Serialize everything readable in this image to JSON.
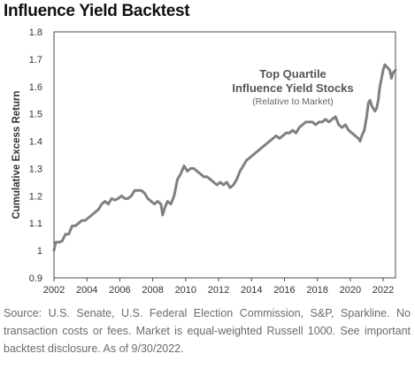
{
  "chart_data": {
    "type": "line",
    "title": "Influence Yield Backtest",
    "ylabel": "Cumulative Excess Return",
    "xlabel": "",
    "xlim": [
      2002,
      2022.75
    ],
    "ylim": [
      0.9,
      1.8
    ],
    "x_ticks": [
      "2002",
      "2004",
      "2006",
      "2008",
      "2010",
      "2012",
      "2014",
      "2016",
      "2018",
      "2020",
      "2022"
    ],
    "y_ticks": [
      "0.9",
      "1",
      "1.1",
      "1.2",
      "1.3",
      "1.4",
      "1.5",
      "1.6",
      "1.7",
      "1.8"
    ],
    "grid": false,
    "line_color": "#808080",
    "annotation": {
      "lines": [
        "Top Quartile",
        "Influence Yield Stocks"
      ],
      "sub": "(Relative to Market)"
    },
    "series": [
      {
        "points": [
          [
            2002.0,
            1.0
          ],
          [
            2002.1,
            1.03
          ],
          [
            2002.3,
            1.03
          ],
          [
            2002.5,
            1.035
          ],
          [
            2002.7,
            1.06
          ],
          [
            2002.9,
            1.06
          ],
          [
            2003.1,
            1.09
          ],
          [
            2003.3,
            1.09
          ],
          [
            2003.5,
            1.1
          ],
          [
            2003.7,
            1.11
          ],
          [
            2003.9,
            1.11
          ],
          [
            2004.1,
            1.12
          ],
          [
            2004.3,
            1.13
          ],
          [
            2004.5,
            1.14
          ],
          [
            2004.7,
            1.15
          ],
          [
            2004.9,
            1.17
          ],
          [
            2005.1,
            1.18
          ],
          [
            2005.3,
            1.17
          ],
          [
            2005.5,
            1.19
          ],
          [
            2005.7,
            1.185
          ],
          [
            2005.9,
            1.19
          ],
          [
            2006.1,
            1.2
          ],
          [
            2006.3,
            1.19
          ],
          [
            2006.5,
            1.19
          ],
          [
            2006.7,
            1.2
          ],
          [
            2006.9,
            1.22
          ],
          [
            2007.1,
            1.22
          ],
          [
            2007.3,
            1.22
          ],
          [
            2007.5,
            1.21
          ],
          [
            2007.7,
            1.19
          ],
          [
            2007.9,
            1.18
          ],
          [
            2008.1,
            1.17
          ],
          [
            2008.3,
            1.18
          ],
          [
            2008.5,
            1.17
          ],
          [
            2008.6,
            1.13
          ],
          [
            2008.75,
            1.16
          ],
          [
            2008.9,
            1.18
          ],
          [
            2009.1,
            1.17
          ],
          [
            2009.3,
            1.2
          ],
          [
            2009.5,
            1.26
          ],
          [
            2009.7,
            1.28
          ],
          [
            2009.9,
            1.31
          ],
          [
            2010.1,
            1.29
          ],
          [
            2010.3,
            1.3
          ],
          [
            2010.5,
            1.3
          ],
          [
            2010.7,
            1.29
          ],
          [
            2010.9,
            1.28
          ],
          [
            2011.1,
            1.27
          ],
          [
            2011.3,
            1.27
          ],
          [
            2011.5,
            1.26
          ],
          [
            2011.7,
            1.25
          ],
          [
            2011.9,
            1.24
          ],
          [
            2012.1,
            1.25
          ],
          [
            2012.3,
            1.24
          ],
          [
            2012.5,
            1.25
          ],
          [
            2012.7,
            1.23
          ],
          [
            2012.9,
            1.24
          ],
          [
            2013.1,
            1.26
          ],
          [
            2013.3,
            1.29
          ],
          [
            2013.5,
            1.31
          ],
          [
            2013.7,
            1.33
          ],
          [
            2013.9,
            1.34
          ],
          [
            2014.1,
            1.35
          ],
          [
            2014.3,
            1.36
          ],
          [
            2014.5,
            1.37
          ],
          [
            2014.7,
            1.38
          ],
          [
            2014.9,
            1.39
          ],
          [
            2015.1,
            1.4
          ],
          [
            2015.3,
            1.41
          ],
          [
            2015.5,
            1.42
          ],
          [
            2015.7,
            1.41
          ],
          [
            2015.9,
            1.42
          ],
          [
            2016.1,
            1.43
          ],
          [
            2016.3,
            1.43
          ],
          [
            2016.5,
            1.44
          ],
          [
            2016.7,
            1.43
          ],
          [
            2016.9,
            1.45
          ],
          [
            2017.1,
            1.46
          ],
          [
            2017.3,
            1.47
          ],
          [
            2017.5,
            1.47
          ],
          [
            2017.7,
            1.47
          ],
          [
            2017.9,
            1.46
          ],
          [
            2018.1,
            1.47
          ],
          [
            2018.3,
            1.47
          ],
          [
            2018.5,
            1.48
          ],
          [
            2018.7,
            1.47
          ],
          [
            2018.9,
            1.48
          ],
          [
            2019.1,
            1.49
          ],
          [
            2019.3,
            1.46
          ],
          [
            2019.5,
            1.45
          ],
          [
            2019.7,
            1.46
          ],
          [
            2019.9,
            1.44
          ],
          [
            2020.1,
            1.43
          ],
          [
            2020.3,
            1.42
          ],
          [
            2020.5,
            1.41
          ],
          [
            2020.6,
            1.4
          ],
          [
            2020.7,
            1.42
          ],
          [
            2020.85,
            1.44
          ],
          [
            2021.0,
            1.49
          ],
          [
            2021.1,
            1.54
          ],
          [
            2021.2,
            1.55
          ],
          [
            2021.3,
            1.53
          ],
          [
            2021.4,
            1.52
          ],
          [
            2021.5,
            1.51
          ],
          [
            2021.6,
            1.52
          ],
          [
            2021.7,
            1.55
          ],
          [
            2021.8,
            1.6
          ],
          [
            2021.9,
            1.63
          ],
          [
            2022.0,
            1.66
          ],
          [
            2022.1,
            1.68
          ],
          [
            2022.25,
            1.67
          ],
          [
            2022.4,
            1.66
          ],
          [
            2022.5,
            1.63
          ],
          [
            2022.6,
            1.65
          ],
          [
            2022.75,
            1.66
          ]
        ]
      }
    ]
  },
  "source_note": "Source: U.S. Senate, U.S. Federal Election Commission, S&P, Sparkline. No transaction costs or fees. Market is equal-weighted Russell 1000. See important backtest disclosure. As of 9/30/2022."
}
